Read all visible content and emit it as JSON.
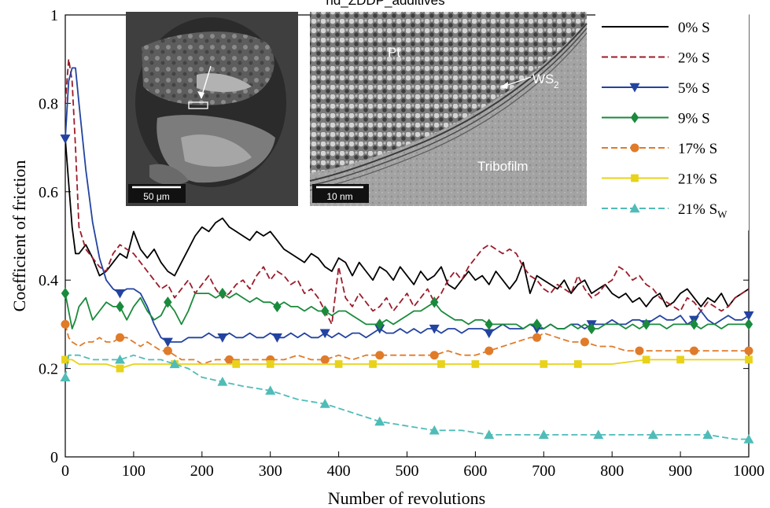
{
  "chart_data": {
    "type": "line",
    "title": "nd_ZDDP_additives",
    "xlabel": "Number of revolutions",
    "ylabel": "Coefficient of friction",
    "xlim": [
      0,
      1000
    ],
    "ylim": [
      0,
      1
    ],
    "xticks": [
      0,
      100,
      200,
      300,
      400,
      500,
      600,
      700,
      800,
      900,
      1000
    ],
    "yticks": [
      0,
      0.2,
      0.4,
      0.6,
      0.8,
      1
    ],
    "ytick_labels": [
      "0",
      "0.2",
      "0.4",
      "0.6",
      "0.8",
      "1"
    ],
    "grid": false,
    "legend_position": "top-right",
    "series": [
      {
        "name": "0% S",
        "color": "#000000",
        "dash": "solid",
        "marker": "none",
        "x": [
          0,
          5,
          10,
          15,
          20,
          30,
          40,
          50,
          60,
          70,
          80,
          90,
          100,
          110,
          120,
          130,
          140,
          150,
          160,
          170,
          180,
          190,
          200,
          210,
          220,
          230,
          240,
          250,
          260,
          270,
          280,
          290,
          300,
          310,
          320,
          330,
          340,
          350,
          360,
          370,
          380,
          390,
          400,
          410,
          420,
          430,
          440,
          450,
          460,
          470,
          480,
          490,
          500,
          510,
          520,
          530,
          540,
          550,
          560,
          570,
          580,
          590,
          600,
          610,
          620,
          630,
          640,
          650,
          660,
          670,
          680,
          690,
          700,
          710,
          720,
          730,
          740,
          750,
          760,
          770,
          780,
          790,
          800,
          810,
          820,
          830,
          840,
          850,
          860,
          870,
          880,
          890,
          900,
          910,
          920,
          930,
          940,
          950,
          960,
          970,
          980,
          990,
          1000
        ],
        "y": [
          0.72,
          0.62,
          0.52,
          0.46,
          0.46,
          0.48,
          0.45,
          0.41,
          0.42,
          0.44,
          0.46,
          0.45,
          0.51,
          0.47,
          0.45,
          0.47,
          0.44,
          0.42,
          0.41,
          0.44,
          0.47,
          0.5,
          0.52,
          0.51,
          0.53,
          0.54,
          0.52,
          0.51,
          0.5,
          0.49,
          0.51,
          0.5,
          0.51,
          0.49,
          0.47,
          0.46,
          0.45,
          0.44,
          0.46,
          0.45,
          0.43,
          0.42,
          0.45,
          0.44,
          0.41,
          0.44,
          0.42,
          0.4,
          0.43,
          0.42,
          0.4,
          0.43,
          0.41,
          0.39,
          0.42,
          0.4,
          0.41,
          0.43,
          0.39,
          0.38,
          0.4,
          0.42,
          0.4,
          0.41,
          0.39,
          0.42,
          0.4,
          0.38,
          0.4,
          0.44,
          0.37,
          0.41,
          0.4,
          0.39,
          0.38,
          0.4,
          0.37,
          0.39,
          0.4,
          0.37,
          0.38,
          0.39,
          0.37,
          0.36,
          0.37,
          0.35,
          0.36,
          0.34,
          0.36,
          0.37,
          0.34,
          0.35,
          0.37,
          0.38,
          0.36,
          0.34,
          0.36,
          0.35,
          0.37,
          0.34,
          0.36,
          0.37,
          0.38
        ]
      },
      {
        "name": "2% S",
        "color": "#9b1c2a",
        "dash": "8,4",
        "marker": "none",
        "x": [
          0,
          5,
          10,
          15,
          20,
          30,
          40,
          50,
          60,
          70,
          80,
          90,
          100,
          110,
          120,
          130,
          140,
          150,
          160,
          170,
          180,
          190,
          200,
          210,
          220,
          230,
          240,
          250,
          260,
          270,
          280,
          290,
          300,
          310,
          320,
          330,
          340,
          350,
          360,
          370,
          380,
          390,
          400,
          410,
          420,
          430,
          440,
          450,
          460,
          470,
          480,
          490,
          500,
          510,
          520,
          530,
          540,
          550,
          560,
          570,
          580,
          590,
          600,
          610,
          620,
          630,
          640,
          650,
          660,
          670,
          680,
          690,
          700,
          710,
          720,
          730,
          740,
          750,
          760,
          770,
          780,
          790,
          800,
          810,
          820,
          830,
          840,
          850,
          860,
          870,
          880,
          890,
          900,
          910,
          920,
          930,
          940,
          950,
          960,
          970,
          980,
          990,
          1000
        ],
        "y": [
          0.8,
          0.9,
          0.85,
          0.7,
          0.52,
          0.47,
          0.45,
          0.43,
          0.42,
          0.46,
          0.48,
          0.47,
          0.46,
          0.44,
          0.42,
          0.4,
          0.38,
          0.39,
          0.36,
          0.38,
          0.4,
          0.37,
          0.39,
          0.41,
          0.38,
          0.36,
          0.37,
          0.39,
          0.4,
          0.38,
          0.41,
          0.43,
          0.4,
          0.42,
          0.41,
          0.39,
          0.4,
          0.37,
          0.38,
          0.36,
          0.33,
          0.3,
          0.43,
          0.36,
          0.34,
          0.37,
          0.35,
          0.33,
          0.34,
          0.36,
          0.33,
          0.35,
          0.37,
          0.34,
          0.36,
          0.38,
          0.35,
          0.37,
          0.4,
          0.42,
          0.4,
          0.43,
          0.45,
          0.47,
          0.48,
          0.47,
          0.46,
          0.47,
          0.46,
          0.43,
          0.41,
          0.4,
          0.38,
          0.37,
          0.39,
          0.38,
          0.37,
          0.41,
          0.38,
          0.36,
          0.37,
          0.39,
          0.4,
          0.43,
          0.42,
          0.4,
          0.41,
          0.39,
          0.38,
          0.36,
          0.35,
          0.34,
          0.33,
          0.36,
          0.35,
          0.33,
          0.35,
          0.34,
          0.33,
          0.34,
          0.36,
          0.37,
          0.38
        ]
      },
      {
        "name": "5% S",
        "color": "#2343a0",
        "dash": "solid",
        "marker": "triangle-down",
        "x": [
          0,
          5,
          10,
          15,
          20,
          30,
          40,
          50,
          60,
          70,
          80,
          90,
          100,
          110,
          120,
          130,
          140,
          150,
          160,
          170,
          180,
          190,
          200,
          210,
          220,
          230,
          240,
          250,
          260,
          270,
          280,
          290,
          300,
          310,
          320,
          330,
          340,
          350,
          360,
          370,
          380,
          390,
          400,
          410,
          420,
          430,
          440,
          450,
          460,
          470,
          480,
          490,
          500,
          510,
          520,
          530,
          540,
          550,
          560,
          570,
          580,
          590,
          600,
          610,
          620,
          630,
          640,
          650,
          660,
          670,
          680,
          690,
          700,
          710,
          720,
          730,
          740,
          750,
          760,
          770,
          780,
          790,
          800,
          810,
          820,
          830,
          840,
          850,
          860,
          870,
          880,
          890,
          900,
          910,
          920,
          930,
          940,
          950,
          960,
          970,
          980,
          990,
          1000
        ],
        "y": [
          0.72,
          0.85,
          0.88,
          0.88,
          0.8,
          0.65,
          0.53,
          0.45,
          0.4,
          0.38,
          0.37,
          0.38,
          0.38,
          0.37,
          0.34,
          0.3,
          0.27,
          0.26,
          0.26,
          0.26,
          0.27,
          0.27,
          0.27,
          0.28,
          0.27,
          0.27,
          0.28,
          0.27,
          0.27,
          0.28,
          0.27,
          0.27,
          0.28,
          0.27,
          0.27,
          0.28,
          0.27,
          0.28,
          0.27,
          0.27,
          0.28,
          0.27,
          0.28,
          0.27,
          0.28,
          0.28,
          0.27,
          0.28,
          0.29,
          0.28,
          0.28,
          0.29,
          0.28,
          0.29,
          0.28,
          0.29,
          0.29,
          0.28,
          0.29,
          0.29,
          0.28,
          0.29,
          0.29,
          0.29,
          0.28,
          0.29,
          0.3,
          0.29,
          0.29,
          0.29,
          0.3,
          0.29,
          0.29,
          0.3,
          0.29,
          0.29,
          0.3,
          0.3,
          0.29,
          0.3,
          0.3,
          0.3,
          0.31,
          0.3,
          0.3,
          0.31,
          0.31,
          0.3,
          0.31,
          0.32,
          0.31,
          0.31,
          0.32,
          0.3,
          0.31,
          0.33,
          0.31,
          0.3,
          0.31,
          0.32,
          0.31,
          0.31,
          0.32
        ]
      },
      {
        "name": "9% S",
        "color": "#1a8a3c",
        "dash": "solid",
        "marker": "diamond",
        "x": [
          0,
          5,
          10,
          15,
          20,
          30,
          40,
          50,
          60,
          70,
          80,
          90,
          100,
          110,
          120,
          130,
          140,
          150,
          160,
          170,
          180,
          190,
          200,
          210,
          220,
          230,
          240,
          250,
          260,
          270,
          280,
          290,
          300,
          310,
          320,
          330,
          340,
          350,
          360,
          370,
          380,
          390,
          400,
          410,
          420,
          430,
          440,
          450,
          460,
          470,
          480,
          490,
          500,
          510,
          520,
          530,
          540,
          550,
          560,
          570,
          580,
          590,
          600,
          610,
          620,
          630,
          640,
          650,
          660,
          670,
          680,
          690,
          700,
          710,
          720,
          730,
          740,
          750,
          760,
          770,
          780,
          790,
          800,
          810,
          820,
          830,
          840,
          850,
          860,
          870,
          880,
          890,
          900,
          910,
          920,
          930,
          940,
          950,
          960,
          970,
          980,
          990,
          1000
        ],
        "y": [
          0.37,
          0.33,
          0.29,
          0.31,
          0.34,
          0.36,
          0.31,
          0.33,
          0.35,
          0.34,
          0.34,
          0.31,
          0.34,
          0.36,
          0.33,
          0.31,
          0.32,
          0.35,
          0.33,
          0.3,
          0.33,
          0.37,
          0.37,
          0.37,
          0.36,
          0.37,
          0.36,
          0.37,
          0.36,
          0.35,
          0.36,
          0.35,
          0.35,
          0.34,
          0.35,
          0.34,
          0.34,
          0.33,
          0.34,
          0.33,
          0.33,
          0.32,
          0.33,
          0.33,
          0.32,
          0.31,
          0.3,
          0.3,
          0.3,
          0.31,
          0.3,
          0.31,
          0.32,
          0.33,
          0.33,
          0.34,
          0.35,
          0.33,
          0.32,
          0.31,
          0.31,
          0.3,
          0.31,
          0.31,
          0.3,
          0.3,
          0.3,
          0.3,
          0.3,
          0.29,
          0.3,
          0.3,
          0.29,
          0.3,
          0.29,
          0.29,
          0.3,
          0.29,
          0.3,
          0.29,
          0.29,
          0.3,
          0.3,
          0.3,
          0.29,
          0.3,
          0.29,
          0.3,
          0.3,
          0.3,
          0.29,
          0.3,
          0.3,
          0.3,
          0.3,
          0.29,
          0.3,
          0.3,
          0.29,
          0.3,
          0.3,
          0.3,
          0.3
        ]
      },
      {
        "name": "17% S",
        "color": "#e07b2a",
        "dash": "8,4",
        "marker": "circle",
        "x": [
          0,
          5,
          10,
          20,
          30,
          40,
          50,
          60,
          70,
          80,
          90,
          100,
          110,
          120,
          130,
          140,
          150,
          160,
          170,
          180,
          190,
          200,
          220,
          240,
          260,
          280,
          300,
          320,
          340,
          360,
          380,
          400,
          420,
          440,
          460,
          480,
          500,
          520,
          540,
          560,
          580,
          600,
          620,
          640,
          660,
          680,
          690,
          700,
          720,
          740,
          760,
          780,
          800,
          820,
          840,
          860,
          880,
          900,
          920,
          940,
          960,
          980,
          1000
        ],
        "y": [
          0.3,
          0.27,
          0.26,
          0.25,
          0.26,
          0.26,
          0.27,
          0.26,
          0.26,
          0.27,
          0.27,
          0.26,
          0.25,
          0.26,
          0.25,
          0.24,
          0.24,
          0.23,
          0.22,
          0.22,
          0.22,
          0.21,
          0.22,
          0.22,
          0.22,
          0.22,
          0.22,
          0.22,
          0.23,
          0.22,
          0.22,
          0.23,
          0.22,
          0.23,
          0.23,
          0.23,
          0.23,
          0.23,
          0.23,
          0.24,
          0.23,
          0.23,
          0.24,
          0.25,
          0.26,
          0.27,
          0.27,
          0.28,
          0.27,
          0.26,
          0.26,
          0.25,
          0.25,
          0.24,
          0.24,
          0.24,
          0.24,
          0.24,
          0.24,
          0.24,
          0.24,
          0.24,
          0.24
        ]
      },
      {
        "name": "21% S",
        "color": "#e8d21a",
        "dash": "solid",
        "marker": "square",
        "x": [
          0,
          10,
          20,
          40,
          60,
          80,
          100,
          120,
          140,
          160,
          180,
          200,
          250,
          300,
          350,
          400,
          450,
          500,
          550,
          600,
          650,
          700,
          750,
          800,
          850,
          900,
          950,
          1000
        ],
        "y": [
          0.22,
          0.22,
          0.21,
          0.21,
          0.21,
          0.2,
          0.21,
          0.21,
          0.21,
          0.21,
          0.21,
          0.21,
          0.21,
          0.21,
          0.21,
          0.21,
          0.21,
          0.21,
          0.21,
          0.21,
          0.21,
          0.21,
          0.21,
          0.21,
          0.22,
          0.22,
          0.22,
          0.22
        ]
      },
      {
        "name": "21% S",
        "name_subscript": "W",
        "color": "#4fbcb8",
        "dash": "8,4",
        "marker": "triangle-up",
        "x": [
          0,
          5,
          10,
          20,
          40,
          60,
          80,
          100,
          120,
          140,
          160,
          180,
          200,
          230,
          260,
          300,
          340,
          380,
          420,
          460,
          500,
          540,
          580,
          620,
          660,
          700,
          740,
          780,
          820,
          860,
          900,
          940,
          980,
          1000
        ],
        "y": [
          0.18,
          0.23,
          0.23,
          0.23,
          0.22,
          0.22,
          0.22,
          0.23,
          0.22,
          0.22,
          0.21,
          0.2,
          0.18,
          0.17,
          0.16,
          0.15,
          0.13,
          0.12,
          0.1,
          0.08,
          0.07,
          0.06,
          0.06,
          0.05,
          0.05,
          0.05,
          0.05,
          0.05,
          0.05,
          0.05,
          0.05,
          0.05,
          0.04,
          0.04
        ]
      }
    ],
    "insets": [
      {
        "scale_label": "50 μm"
      },
      {
        "scale_label": "10 nm",
        "labels": [
          "Pt",
          "WS",
          "2",
          "Tribofilm"
        ]
      }
    ]
  }
}
